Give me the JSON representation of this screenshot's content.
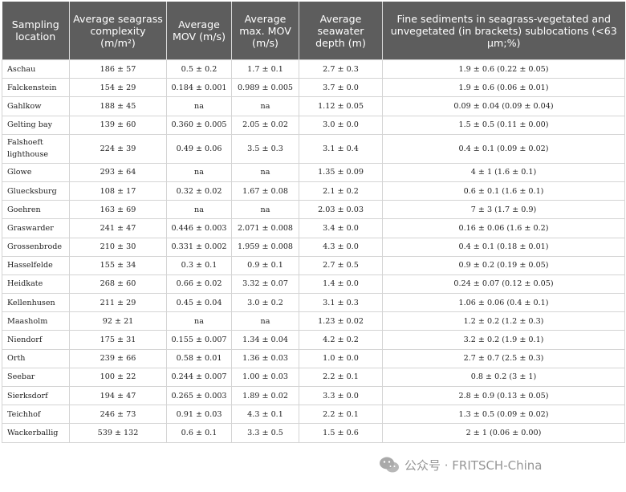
{
  "table": {
    "headers": [
      "Sampling location",
      "Average seagrass complexity (m/m²)",
      "Average MOV (m/s)",
      "Average max. MOV (m/s)",
      "Average seawater depth (m)",
      "Fine sediments in seagrass-vegetated and unvegetated (in brackets) sublocations (<63 µm;%)"
    ],
    "rows": [
      [
        "Aschau",
        "186 ± 57",
        "0.5 ± 0.2",
        "1.7 ± 0.1",
        "2.7 ± 0.3",
        "1.9 ± 0.6 (0.22 ± 0.05)"
      ],
      [
        "Falckenstein",
        "154 ± 29",
        "0.184 ± 0.001",
        "0.989 ± 0.005",
        "3.7 ± 0.0",
        "1.9 ± 0.6 (0.06 ± 0.01)"
      ],
      [
        "Gahlkow",
        "188 ± 45",
        "na",
        "na",
        "1.12 ± 0.05",
        "0.09 ± 0.04 (0.09 ± 0.04)"
      ],
      [
        "Gelting bay",
        "139 ± 60",
        "0.360 ± 0.005",
        "2.05 ± 0.02",
        "3.0 ± 0.0",
        "1.5 ± 0.5 (0.11 ± 0.00)"
      ],
      [
        "Falshoeft lighthouse",
        "224 ± 39",
        "0.49 ± 0.06",
        "3.5 ± 0.3",
        "3.1 ± 0.4",
        "0.4 ± 0.1 (0.09 ± 0.02)"
      ],
      [
        "Glowe",
        "293 ± 64",
        "na",
        "na",
        "1.35 ± 0.09",
        "4 ± 1 (1.6 ± 0.1)"
      ],
      [
        "Gluecksburg",
        "108 ± 17",
        "0.32 ± 0.02",
        "1.67 ± 0.08",
        "2.1 ± 0.2",
        "0.6 ± 0.1 (1.6 ± 0.1)"
      ],
      [
        "Goehren",
        "163 ± 69",
        "na",
        "na",
        "2.03 ± 0.03",
        "7 ± 3 (1.7 ± 0.9)"
      ],
      [
        "Graswarder",
        "241 ± 47",
        "0.446 ± 0.003",
        "2.071 ± 0.008",
        "3.4 ± 0.0",
        "0.16 ± 0.06 (1.6 ± 0.2)"
      ],
      [
        "Grossenbrode",
        "210 ± 30",
        "0.331 ± 0.002",
        "1.959 ± 0.008",
        "4.3 ± 0.0",
        "0.4 ± 0.1 (0.18 ± 0.01)"
      ],
      [
        "Hasselfelde",
        "155 ± 34",
        "0.3 ± 0.1",
        "0.9 ± 0.1",
        "2.7 ± 0.5",
        "0.9 ± 0.2 (0.19 ± 0.05)"
      ],
      [
        "Heidkate",
        "268 ± 60",
        "0.66 ± 0.02",
        "3.32 ± 0.07",
        "1.4 ± 0.0",
        "0.24 ± 0.07 (0.12 ± 0.05)"
      ],
      [
        "Kellenhusen",
        "211 ± 29",
        "0.45 ± 0.04",
        "3.0 ± 0.2",
        "3.1 ± 0.3",
        "1.06 ± 0.06 (0.4 ± 0.1)"
      ],
      [
        "Maasholm",
        "92 ± 21",
        "na",
        "na",
        "1.23 ± 0.02",
        "1.2 ± 0.2 (1.2 ± 0.3)"
      ],
      [
        "Niendorf",
        "175 ± 31",
        "0.155 ± 0.007",
        "1.34 ± 0.04",
        "4.2 ± 0.2",
        "3.2 ± 0.2 (1.9 ± 0.1)"
      ],
      [
        "Orth",
        "239 ± 66",
        "0.58 ± 0.01",
        "1.36 ± 0.03",
        "1.0 ± 0.0",
        "2.7 ± 0.7 (2.5 ± 0.3)"
      ],
      [
        "Seebar",
        "100 ± 22",
        "0.244 ± 0.007",
        "1.00 ± 0.03",
        "2.2 ± 0.1",
        "0.8 ± 0.2 (3 ± 1)"
      ],
      [
        "Sierksdorf",
        "194 ± 47",
        "0.265 ± 0.003",
        "1.89 ± 0.02",
        "3.3 ± 0.0",
        "2.8 ± 0.9 (0.13 ± 0.05)"
      ],
      [
        "Teichhof",
        "246 ± 73",
        "0.91 ± 0.03",
        "4.3 ± 0.1",
        "2.2 ± 0.1",
        "1.3 ± 0.5 (0.09 ± 0.02)"
      ],
      [
        "Wackerballig",
        "539 ± 132",
        "0.6 ± 0.1",
        "3.3 ± 0.5",
        "1.5 ± 0.6",
        "2 ± 1 (0.06 ± 0.00)"
      ]
    ]
  },
  "watermark": {
    "text": "公众号 · FRITSCH-China",
    "icon": "wechat-logo-icon"
  },
  "colors": {
    "header_bg": "#5d5d5d",
    "header_text": "#ffffff",
    "grid": "#d4d4d4"
  }
}
